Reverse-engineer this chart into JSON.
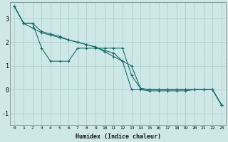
{
  "xlabel": "Humidex (Indice chaleur)",
  "background_color": "#cee8e8",
  "grid_color": "#b0cfcf",
  "line_color": "#1a6b6b",
  "xlim": [
    -0.5,
    23.5
  ],
  "ylim": [
    -1.5,
    3.7
  ],
  "yticks": [
    -1,
    0,
    1,
    2,
    3
  ],
  "xticks": [
    0,
    1,
    2,
    3,
    4,
    5,
    6,
    7,
    8,
    9,
    10,
    11,
    12,
    13,
    14,
    15,
    16,
    17,
    18,
    19,
    20,
    21,
    22,
    23
  ],
  "series": [
    {
      "x": [
        0,
        1,
        2,
        3,
        4,
        5,
        6,
        7,
        8,
        9,
        10,
        11,
        12,
        13,
        14,
        15,
        16,
        17,
        18,
        19,
        20,
        21,
        22,
        23
      ],
      "y": [
        3.5,
        2.8,
        2.8,
        2.45,
        2.35,
        2.25,
        2.1,
        2.0,
        1.9,
        1.8,
        1.65,
        1.55,
        1.2,
        0.0,
        0.0,
        -0.05,
        -0.05,
        -0.05,
        -0.05,
        -0.05,
        0.0,
        0.0,
        0.0,
        -0.65
      ]
    },
    {
      "x": [
        0,
        1,
        2,
        3,
        4,
        5,
        6,
        7,
        8,
        9,
        10,
        11,
        12,
        13,
        14,
        15,
        16,
        17,
        18,
        19,
        20,
        21,
        22,
        23
      ],
      "y": [
        3.5,
        2.8,
        2.8,
        1.75,
        1.2,
        1.2,
        1.2,
        1.75,
        1.75,
        1.75,
        1.75,
        1.75,
        1.75,
        0.6,
        0.05,
        0.0,
        0.0,
        0.0,
        0.0,
        0.0,
        0.0,
        0.0,
        0.0,
        -0.65
      ]
    },
    {
      "x": [
        0,
        1,
        2,
        3,
        4,
        5,
        6,
        7,
        8,
        9,
        10,
        11,
        12,
        13,
        14,
        15,
        16,
        17,
        18,
        19,
        20,
        21,
        22,
        23
      ],
      "y": [
        3.5,
        2.8,
        2.6,
        2.4,
        2.3,
        2.2,
        2.1,
        2.0,
        1.9,
        1.8,
        1.6,
        1.4,
        1.2,
        1.0,
        0.05,
        0.0,
        0.0,
        0.0,
        0.0,
        0.0,
        0.0,
        0.0,
        0.0,
        -0.65
      ]
    }
  ]
}
